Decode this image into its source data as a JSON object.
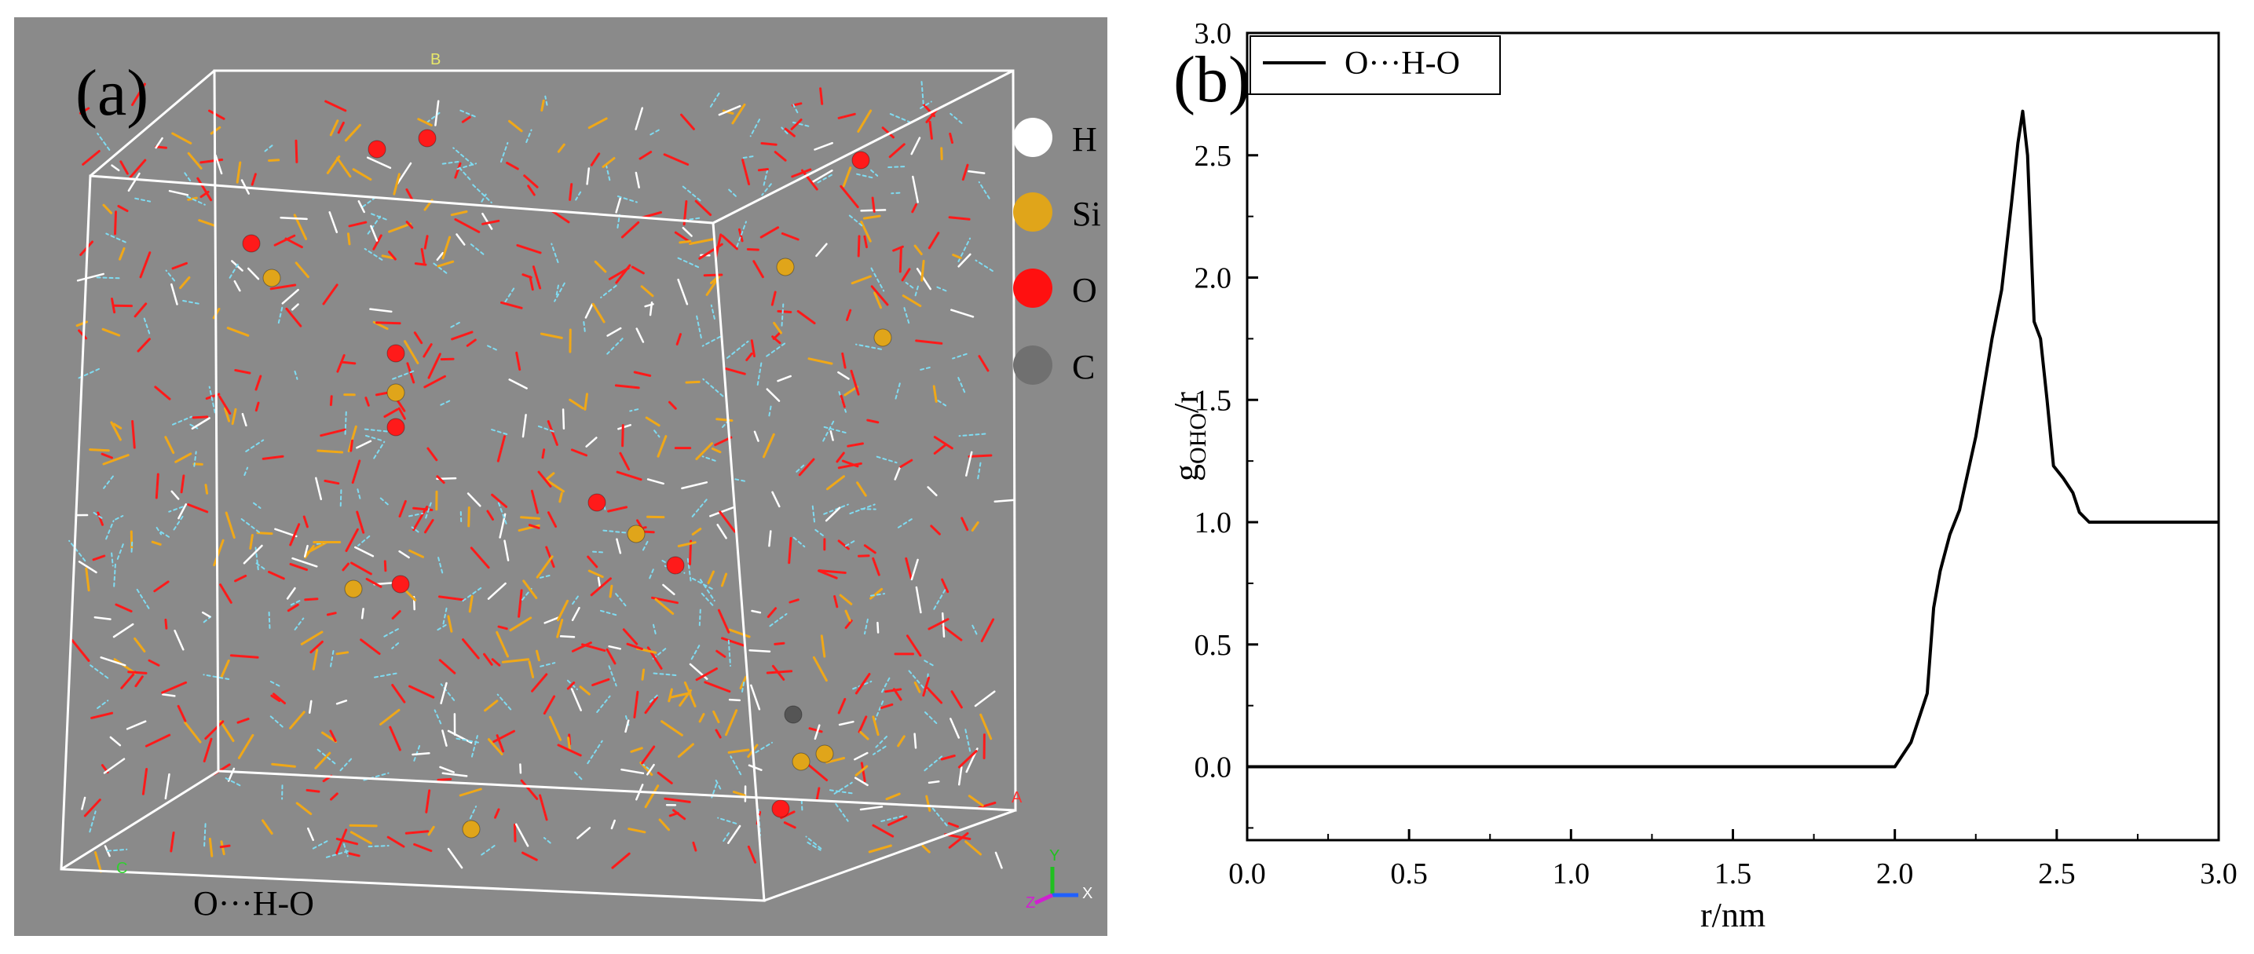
{
  "panel_a": {
    "label": "(a)",
    "caption": "O···H-O",
    "axis_labels": {
      "top": "B",
      "right": "A",
      "left": "C"
    },
    "triad": {
      "y": "Y",
      "x": "X",
      "z": "Z"
    },
    "legend": [
      {
        "symbol": "H",
        "color": "#ffffff"
      },
      {
        "symbol": "Si",
        "color": "#e0a51a"
      },
      {
        "symbol": "O",
        "color": "#ff1010"
      },
      {
        "symbol": "C",
        "color": "#707070"
      }
    ],
    "colors": {
      "background": "#8a8a8a",
      "box": "#ffffff",
      "si_bond": "#f0a818",
      "o_bond": "#ff1a1a",
      "h_bond": "#ffffff",
      "hbond_dash": "#7fdcf2"
    }
  },
  "panel_b": {
    "label": "(b)"
  },
  "chart_data": {
    "type": "line",
    "title": "",
    "xlabel": "r/nm",
    "ylabel_main": "g",
    "ylabel_sub": "OHO",
    "ylabel_suffix": "/r",
    "xlim": [
      0,
      3.0
    ],
    "ylim": [
      -0.3,
      3.0
    ],
    "xticks": [
      0.0,
      0.5,
      1.0,
      1.5,
      2.0,
      2.5,
      3.0
    ],
    "xtick_labels": [
      "0.0",
      "0.5",
      "1.0",
      "1.5",
      "2.0",
      "2.5",
      "3.0"
    ],
    "yticks": [
      0.0,
      0.5,
      1.0,
      1.5,
      2.0,
      2.5,
      3.0
    ],
    "ytick_labels": [
      "0.0",
      "0.5",
      "1.0",
      "1.5",
      "2.0",
      "2.5",
      "3.0"
    ],
    "grid": false,
    "legend_position": "top-left",
    "series": [
      {
        "name": "O···H-O",
        "color": "#000000",
        "x": [
          0.0,
          2.0,
          2.05,
          2.1,
          2.12,
          2.14,
          2.17,
          2.2,
          2.25,
          2.3,
          2.33,
          2.36,
          2.38,
          2.395,
          2.41,
          2.43,
          2.45,
          2.47,
          2.49,
          2.52,
          2.55,
          2.57,
          2.6,
          3.0
        ],
        "y": [
          0.0,
          0.0,
          0.1,
          0.3,
          0.65,
          0.8,
          0.95,
          1.05,
          1.35,
          1.75,
          1.95,
          2.3,
          2.55,
          2.68,
          2.5,
          1.82,
          1.75,
          1.5,
          1.23,
          1.18,
          1.12,
          1.04,
          1.0,
          1.0
        ]
      }
    ]
  }
}
